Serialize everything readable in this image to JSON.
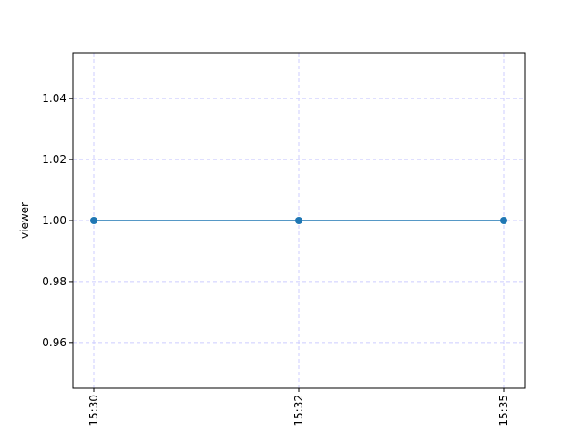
{
  "chart_data": {
    "type": "line",
    "title": "",
    "xlabel": "",
    "ylabel": "viewer",
    "x_categories": [
      "15:30",
      "15:32",
      "15:35"
    ],
    "x_tick_rotation_deg": -90,
    "y_ticks": [
      "0.96",
      "0.98",
      "1.00",
      "1.02",
      "1.04"
    ],
    "ylim": [
      0.945,
      1.055
    ],
    "grid": true,
    "grid_color": "#ccccff",
    "series": [
      {
        "x": [
          "15:30",
          "15:32",
          "15:35"
        ],
        "values": [
          1.0,
          1.0,
          1.0
        ],
        "color": "#1f77b4",
        "marker": "circle"
      }
    ]
  }
}
